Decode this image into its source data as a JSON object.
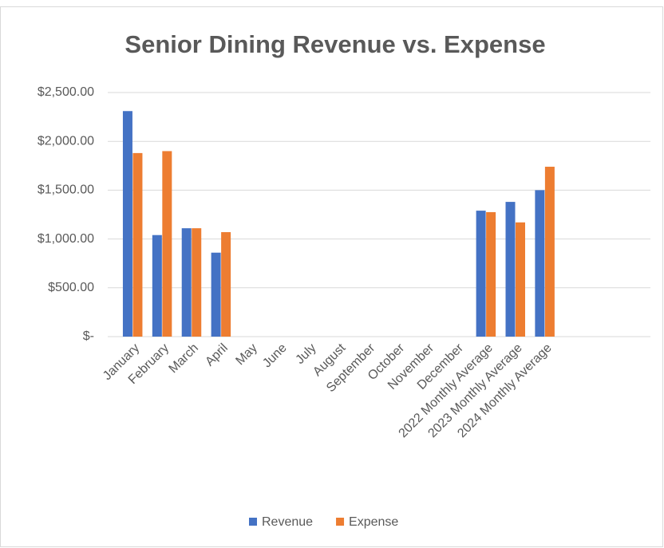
{
  "chart_data": {
    "type": "bar",
    "title": "Senior Dining Revenue vs. Expense",
    "categories": [
      "January",
      "February",
      "March",
      "April",
      "May",
      "June",
      "July",
      "August",
      "September",
      "October",
      "November",
      "December",
      "2022 Monthly Average",
      "2023 Monthly Average",
      "2024 Monthly Average",
      null,
      null,
      null
    ],
    "series": [
      {
        "name": "Revenue",
        "color": "#4472c4",
        "values": [
          2310,
          1040,
          1110,
          860,
          null,
          null,
          null,
          null,
          null,
          null,
          null,
          null,
          1290,
          1380,
          1500,
          null,
          null,
          null
        ]
      },
      {
        "name": "Expense",
        "color": "#ed7d31",
        "values": [
          1880,
          1900,
          1110,
          1070,
          null,
          null,
          null,
          null,
          null,
          null,
          null,
          null,
          1275,
          1170,
          1740,
          null,
          null,
          null
        ]
      }
    ],
    "ylim": [
      0,
      2500
    ],
    "yticks": [
      {
        "value": 0,
        "label": "$-"
      },
      {
        "value": 500,
        "label": "$500.00"
      },
      {
        "value": 1000,
        "label": "$1,000.00"
      },
      {
        "value": 1500,
        "label": "$1,500.00"
      },
      {
        "value": 2000,
        "label": "$2,000.00"
      },
      {
        "value": 2500,
        "label": "$2,500.00"
      }
    ],
    "grid": true,
    "legend": "bottom"
  }
}
